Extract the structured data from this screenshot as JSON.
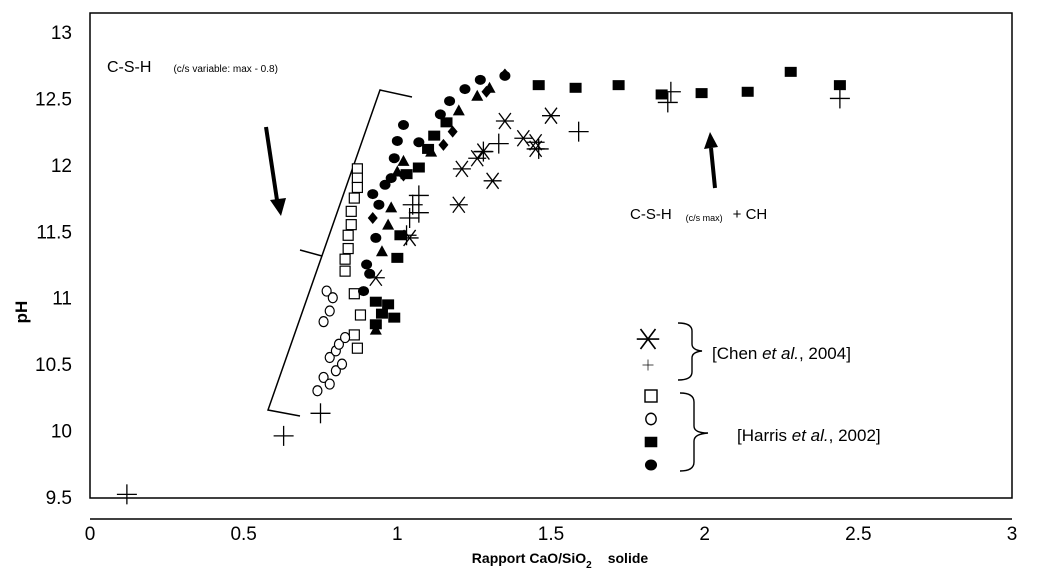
{
  "chart_data": {
    "type": "scatter",
    "title": "",
    "xlabel": {
      "main": "Rapport CaO/SiO",
      "sub": "2",
      "suffix": "solide"
    },
    "ylabel": "pH",
    "xlim": [
      0,
      3
    ],
    "ylim": [
      9.5,
      13
    ],
    "x_ticks": [
      "0",
      "0.5",
      "1",
      "1.5",
      "2",
      "2.5",
      "3"
    ],
    "y_ticks": [
      "9.5",
      "10",
      "10.5",
      "11",
      "11.5",
      "12",
      "12.5",
      "13"
    ],
    "grid": false,
    "series": [
      {
        "marker": "asterisk",
        "points": [
          [
            0.93,
            11.15
          ],
          [
            1.04,
            11.45
          ],
          [
            1.2,
            11.7
          ],
          [
            1.21,
            11.97
          ],
          [
            1.26,
            12.05
          ],
          [
            1.28,
            12.1
          ],
          [
            1.31,
            11.88
          ],
          [
            1.35,
            12.33
          ],
          [
            1.41,
            12.2
          ],
          [
            1.45,
            12.12
          ],
          [
            1.45,
            12.17
          ],
          [
            1.5,
            12.37
          ]
        ]
      },
      {
        "marker": "plus",
        "points": [
          [
            0.12,
            9.52
          ],
          [
            0.63,
            9.96
          ],
          [
            0.75,
            10.13
          ],
          [
            1.03,
            11.47
          ],
          [
            1.04,
            11.6
          ],
          [
            1.05,
            11.7
          ],
          [
            1.07,
            11.64
          ],
          [
            1.07,
            11.77
          ],
          [
            1.28,
            12.1
          ],
          [
            1.33,
            12.16
          ],
          [
            1.46,
            12.12
          ],
          [
            1.59,
            12.25
          ],
          [
            1.88,
            12.47
          ],
          [
            1.89,
            12.55
          ],
          [
            2.44,
            12.5
          ]
        ]
      },
      {
        "marker": "open-square",
        "points": [
          [
            0.87,
            11.97
          ],
          [
            0.87,
            11.9
          ],
          [
            0.87,
            11.83
          ],
          [
            0.86,
            11.75
          ],
          [
            0.85,
            11.65
          ],
          [
            0.85,
            11.55
          ],
          [
            0.84,
            11.47
          ],
          [
            0.84,
            11.37
          ],
          [
            0.83,
            11.29
          ],
          [
            0.83,
            11.2
          ],
          [
            0.86,
            11.03
          ],
          [
            0.88,
            10.87
          ],
          [
            0.86,
            10.72
          ],
          [
            0.87,
            10.62
          ]
        ]
      },
      {
        "marker": "open-circle",
        "points": [
          [
            0.74,
            10.3
          ],
          [
            0.76,
            10.4
          ],
          [
            0.78,
            10.35
          ],
          [
            0.8,
            10.45
          ],
          [
            0.78,
            10.55
          ],
          [
            0.8,
            10.6
          ],
          [
            0.82,
            10.5
          ],
          [
            0.81,
            10.65
          ],
          [
            0.83,
            10.7
          ],
          [
            0.76,
            10.82
          ],
          [
            0.78,
            10.9
          ],
          [
            0.77,
            11.05
          ],
          [
            0.79,
            11.0
          ]
        ]
      },
      {
        "marker": "filled-square",
        "points": [
          [
            0.93,
            10.97
          ],
          [
            0.95,
            10.88
          ],
          [
            0.97,
            10.95
          ],
          [
            0.99,
            10.85
          ],
          [
            0.93,
            10.8
          ],
          [
            1.0,
            11.3
          ],
          [
            1.01,
            11.47
          ],
          [
            1.03,
            11.93
          ],
          [
            1.07,
            11.98
          ],
          [
            1.1,
            12.12
          ],
          [
            1.12,
            12.22
          ],
          [
            1.16,
            12.32
          ],
          [
            1.46,
            12.6
          ],
          [
            1.58,
            12.58
          ],
          [
            1.72,
            12.6
          ],
          [
            1.86,
            12.53
          ],
          [
            1.99,
            12.54
          ],
          [
            2.14,
            12.55
          ],
          [
            2.28,
            12.7
          ],
          [
            2.44,
            12.6
          ]
        ]
      },
      {
        "marker": "filled-circle",
        "points": [
          [
            0.89,
            11.05
          ],
          [
            0.91,
            11.18
          ],
          [
            0.9,
            11.25
          ],
          [
            0.93,
            11.45
          ],
          [
            0.94,
            11.7
          ],
          [
            0.92,
            11.78
          ],
          [
            0.96,
            11.85
          ],
          [
            0.98,
            11.9
          ],
          [
            0.99,
            12.05
          ],
          [
            1.0,
            12.18
          ],
          [
            1.02,
            12.3
          ],
          [
            1.07,
            12.17
          ],
          [
            1.14,
            12.38
          ],
          [
            1.17,
            12.48
          ],
          [
            1.22,
            12.57
          ],
          [
            1.27,
            12.64
          ],
          [
            1.35,
            12.67
          ]
        ]
      },
      {
        "marker": "filled-triangle",
        "points": [
          [
            0.93,
            10.76
          ],
          [
            0.95,
            11.35
          ],
          [
            0.97,
            11.55
          ],
          [
            0.98,
            11.68
          ],
          [
            1.0,
            11.95
          ],
          [
            1.02,
            12.03
          ],
          [
            1.11,
            12.1
          ],
          [
            1.2,
            12.41
          ],
          [
            1.26,
            12.52
          ],
          [
            1.3,
            12.58
          ]
        ]
      },
      {
        "marker": "filled-diamond",
        "points": [
          [
            0.92,
            11.6
          ],
          [
            1.02,
            11.92
          ],
          [
            1.15,
            12.15
          ],
          [
            1.18,
            12.25
          ],
          [
            1.29,
            12.55
          ],
          [
            1.35,
            12.68
          ]
        ]
      }
    ],
    "annotations": {
      "csh_top": "C-S-H",
      "csh_top_sub": "(c/s variable: max - 0.8)",
      "csh_max": "C-S-H",
      "csh_max_sub": "(c/s max)",
      "csh_max_suffix": "+ CH",
      "chen_prefix": "[Chen ",
      "chen_italic": "et al.",
      "chen_suffix": ", 2004]",
      "harris_prefix": "[Harris ",
      "harris_italic": "et al.",
      "harris_suffix": ",  2002]"
    }
  }
}
